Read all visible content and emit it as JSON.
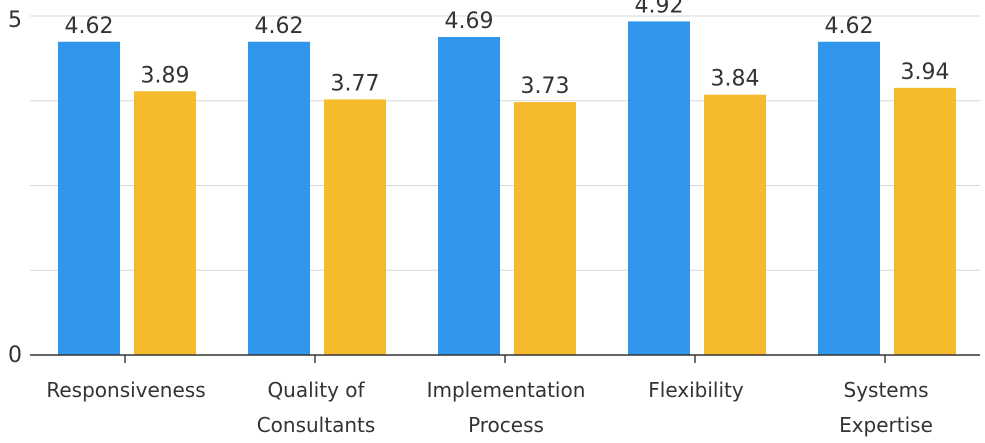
{
  "chart_data": {
    "type": "bar",
    "categories": [
      [
        "Responsiveness"
      ],
      [
        "Quality of",
        "Consultants"
      ],
      [
        "Implementation",
        "Process"
      ],
      [
        "Flexibility"
      ],
      [
        "Systems",
        "Expertise"
      ]
    ],
    "series": [
      {
        "values": [
          4.62,
          4.62,
          4.69,
          4.92,
          4.62
        ],
        "color": "#3096eb"
      },
      {
        "values": [
          3.89,
          3.77,
          3.73,
          3.84,
          3.94
        ],
        "color": "#f6bb2c"
      }
    ],
    "ylim": [
      0,
      5
    ],
    "y_ticks": [
      0,
      5
    ],
    "gridlines": [
      1.25,
      2.5,
      3.75,
      5
    ],
    "grid": true,
    "legend": "none",
    "title": "",
    "xlabel": "",
    "ylabel": ""
  }
}
